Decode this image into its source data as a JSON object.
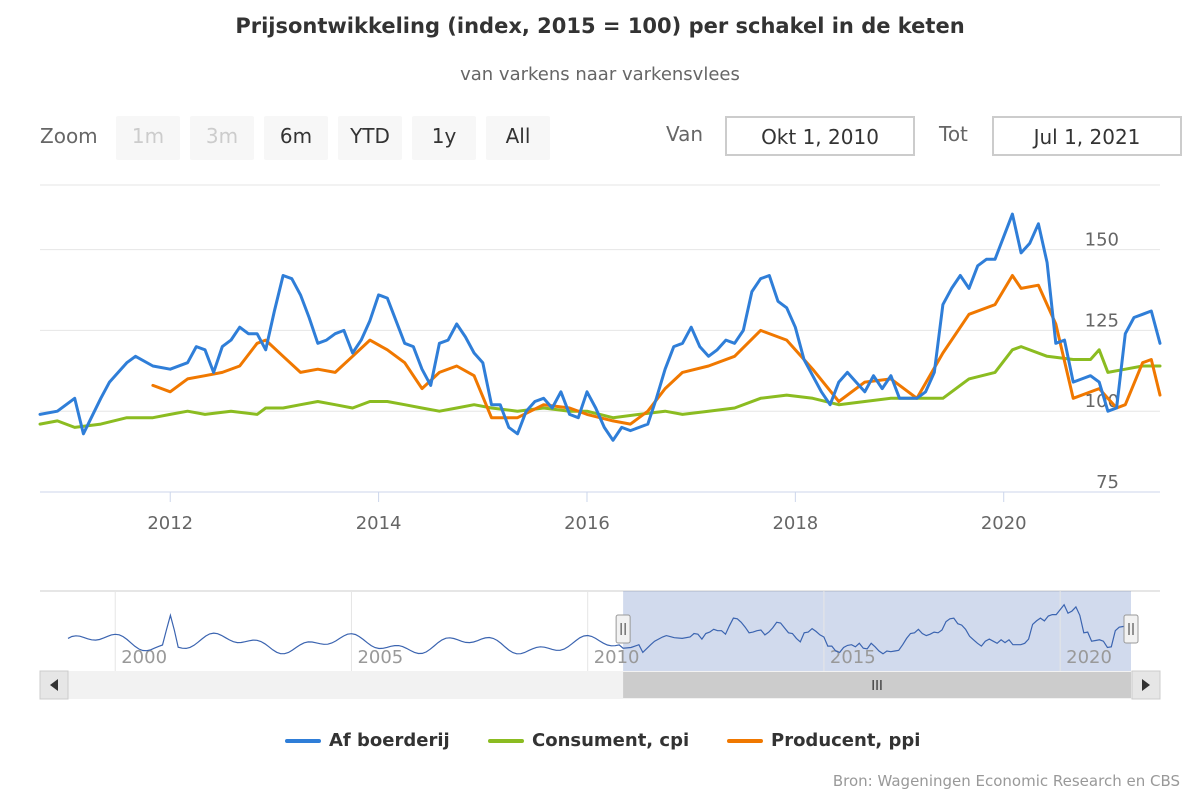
{
  "chart_data": {
    "type": "line",
    "title": "Prijsontwikkeling (index, 2015 = 100) per schakel in de keten",
    "subtitle": "van varkens naar varkensvlees",
    "x_range": [
      "2010-10",
      "2021-07"
    ],
    "ylim": [
      75,
      170
    ],
    "y_ticks": [
      "75",
      "100",
      "125",
      "150"
    ],
    "x_ticks": [
      "2012",
      "2014",
      "2016",
      "2018",
      "2020"
    ],
    "grid": true,
    "legend_position": "bottom",
    "colors": {
      "af_boerderij": "#2f7ed8",
      "consument": "#8bbc21",
      "producent": "#f07800"
    },
    "series": [
      {
        "name": "Af boerderij",
        "color": "#2f7ed8",
        "points": [
          [
            "2010-10",
            99
          ],
          [
            "2010-12",
            100
          ],
          [
            "2011-02",
            104
          ],
          [
            "2011-03",
            93
          ],
          [
            "2011-05",
            104
          ],
          [
            "2011-06",
            109
          ],
          [
            "2011-08",
            115
          ],
          [
            "2011-09",
            117
          ],
          [
            "2011-11",
            114
          ],
          [
            "2012-01",
            113
          ],
          [
            "2012-03",
            115
          ],
          [
            "2012-04",
            120
          ],
          [
            "2012-05",
            119
          ],
          [
            "2012-06",
            112
          ],
          [
            "2012-07",
            120
          ],
          [
            "2012-08",
            122
          ],
          [
            "2012-09",
            126
          ],
          [
            "2012-10",
            124
          ],
          [
            "2012-11",
            124
          ],
          [
            "2012-12",
            119
          ],
          [
            "2013-01",
            131
          ],
          [
            "2013-02",
            142
          ],
          [
            "2013-03",
            141
          ],
          [
            "2013-04",
            136
          ],
          [
            "2013-05",
            129
          ],
          [
            "2013-06",
            121
          ],
          [
            "2013-07",
            122
          ],
          [
            "2013-08",
            124
          ],
          [
            "2013-09",
            125
          ],
          [
            "2013-10",
            118
          ],
          [
            "2013-11",
            122
          ],
          [
            "2013-12",
            128
          ],
          [
            "2014-01",
            136
          ],
          [
            "2014-02",
            135
          ],
          [
            "2014-03",
            128
          ],
          [
            "2014-04",
            121
          ],
          [
            "2014-05",
            120
          ],
          [
            "2014-06",
            113
          ],
          [
            "2014-07",
            108
          ],
          [
            "2014-08",
            121
          ],
          [
            "2014-09",
            122
          ],
          [
            "2014-10",
            127
          ],
          [
            "2014-11",
            123
          ],
          [
            "2014-12",
            118
          ],
          [
            "2015-01",
            115
          ],
          [
            "2015-02",
            102
          ],
          [
            "2015-03",
            102
          ],
          [
            "2015-04",
            95
          ],
          [
            "2015-05",
            93
          ],
          [
            "2015-06",
            100
          ],
          [
            "2015-07",
            103
          ],
          [
            "2015-08",
            104
          ],
          [
            "2015-09",
            101
          ],
          [
            "2015-10",
            106
          ],
          [
            "2015-11",
            99
          ],
          [
            "2015-12",
            98
          ],
          [
            "2016-01",
            106
          ],
          [
            "2016-02",
            101
          ],
          [
            "2016-03",
            95
          ],
          [
            "2016-04",
            91
          ],
          [
            "2016-05",
            95
          ],
          [
            "2016-06",
            94
          ],
          [
            "2016-07",
            95
          ],
          [
            "2016-08",
            96
          ],
          [
            "2016-09",
            104
          ],
          [
            "2016-10",
            113
          ],
          [
            "2016-11",
            120
          ],
          [
            "2016-12",
            121
          ],
          [
            "2017-01",
            126
          ],
          [
            "2017-02",
            120
          ],
          [
            "2017-03",
            117
          ],
          [
            "2017-04",
            119
          ],
          [
            "2017-05",
            122
          ],
          [
            "2017-06",
            121
          ],
          [
            "2017-07",
            125
          ],
          [
            "2017-08",
            137
          ],
          [
            "2017-09",
            141
          ],
          [
            "2017-10",
            142
          ],
          [
            "2017-11",
            134
          ],
          [
            "2017-12",
            132
          ],
          [
            "2018-01",
            126
          ],
          [
            "2018-02",
            116
          ],
          [
            "2018-03",
            111
          ],
          [
            "2018-04",
            106
          ],
          [
            "2018-05",
            102
          ],
          [
            "2018-06",
            109
          ],
          [
            "2018-07",
            112
          ],
          [
            "2018-08",
            109
          ],
          [
            "2018-09",
            106
          ],
          [
            "2018-10",
            111
          ],
          [
            "2018-11",
            107
          ],
          [
            "2018-12",
            111
          ],
          [
            "2019-01",
            104
          ],
          [
            "2019-02",
            104
          ],
          [
            "2019-03",
            104
          ],
          [
            "2019-04",
            106
          ],
          [
            "2019-05",
            112
          ],
          [
            "2019-06",
            133
          ],
          [
            "2019-07",
            138
          ],
          [
            "2019-08",
            142
          ],
          [
            "2019-09",
            138
          ],
          [
            "2019-10",
            145
          ],
          [
            "2019-11",
            147
          ],
          [
            "2019-12",
            147
          ],
          [
            "2020-01",
            154
          ],
          [
            "2020-02",
            161
          ],
          [
            "2020-03",
            149
          ],
          [
            "2020-04",
            152
          ],
          [
            "2020-05",
            158
          ],
          [
            "2020-06",
            146
          ],
          [
            "2020-07",
            121
          ],
          [
            "2020-08",
            122
          ],
          [
            "2020-09",
            109
          ],
          [
            "2020-10",
            110
          ],
          [
            "2020-11",
            111
          ],
          [
            "2020-12",
            109
          ],
          [
            "2021-01",
            100
          ],
          [
            "2021-02",
            101
          ],
          [
            "2021-03",
            124
          ],
          [
            "2021-04",
            129
          ],
          [
            "2021-05",
            130
          ],
          [
            "2021-06",
            131
          ],
          [
            "2021-07",
            121
          ]
        ]
      },
      {
        "name": "Consument, cpi",
        "color": "#8bbc21",
        "points": [
          [
            "2010-10",
            96
          ],
          [
            "2010-12",
            97
          ],
          [
            "2011-02",
            95
          ],
          [
            "2011-05",
            96
          ],
          [
            "2011-08",
            98
          ],
          [
            "2011-11",
            98
          ],
          [
            "2012-01",
            99
          ],
          [
            "2012-03",
            100
          ],
          [
            "2012-05",
            99
          ],
          [
            "2012-08",
            100
          ],
          [
            "2012-11",
            99
          ],
          [
            "2012-12",
            101
          ],
          [
            "2013-02",
            101
          ],
          [
            "2013-04",
            102
          ],
          [
            "2013-06",
            103
          ],
          [
            "2013-08",
            102
          ],
          [
            "2013-10",
            101
          ],
          [
            "2013-12",
            103
          ],
          [
            "2014-02",
            103
          ],
          [
            "2014-04",
            102
          ],
          [
            "2014-06",
            101
          ],
          [
            "2014-08",
            100
          ],
          [
            "2014-10",
            101
          ],
          [
            "2014-12",
            102
          ],
          [
            "2015-02",
            101
          ],
          [
            "2015-05",
            100
          ],
          [
            "2015-08",
            101
          ],
          [
            "2015-11",
            100
          ],
          [
            "2016-01",
            100
          ],
          [
            "2016-04",
            98
          ],
          [
            "2016-07",
            99
          ],
          [
            "2016-10",
            100
          ],
          [
            "2016-12",
            99
          ],
          [
            "2017-03",
            100
          ],
          [
            "2017-06",
            101
          ],
          [
            "2017-09",
            104
          ],
          [
            "2017-12",
            105
          ],
          [
            "2018-03",
            104
          ],
          [
            "2018-06",
            102
          ],
          [
            "2018-09",
            103
          ],
          [
            "2018-12",
            104
          ],
          [
            "2019-03",
            104
          ],
          [
            "2019-06",
            104
          ],
          [
            "2019-09",
            110
          ],
          [
            "2019-12",
            112
          ],
          [
            "2020-02",
            119
          ],
          [
            "2020-03",
            120
          ],
          [
            "2020-06",
            117
          ],
          [
            "2020-09",
            116
          ],
          [
            "2020-11",
            116
          ],
          [
            "2020-12",
            119
          ],
          [
            "2021-01",
            112
          ],
          [
            "2021-03",
            113
          ],
          [
            "2021-05",
            114
          ],
          [
            "2021-07",
            114
          ]
        ]
      },
      {
        "name": "Producent, ppi",
        "color": "#f07800",
        "points": [
          [
            "2011-11",
            108
          ],
          [
            "2012-01",
            106
          ],
          [
            "2012-03",
            110
          ],
          [
            "2012-05",
            111
          ],
          [
            "2012-07",
            112
          ],
          [
            "2012-09",
            114
          ],
          [
            "2012-11",
            121
          ],
          [
            "2012-12",
            122
          ],
          [
            "2013-02",
            117
          ],
          [
            "2013-04",
            112
          ],
          [
            "2013-06",
            113
          ],
          [
            "2013-08",
            112
          ],
          [
            "2013-10",
            117
          ],
          [
            "2013-12",
            122
          ],
          [
            "2014-02",
            119
          ],
          [
            "2014-04",
            115
          ],
          [
            "2014-06",
            107
          ],
          [
            "2014-08",
            112
          ],
          [
            "2014-10",
            114
          ],
          [
            "2014-12",
            111
          ],
          [
            "2015-02",
            98
          ],
          [
            "2015-05",
            98
          ],
          [
            "2015-08",
            102
          ],
          [
            "2015-11",
            101
          ],
          [
            "2016-01",
            99
          ],
          [
            "2016-04",
            97
          ],
          [
            "2016-06",
            96
          ],
          [
            "2016-08",
            100
          ],
          [
            "2016-10",
            107
          ],
          [
            "2016-12",
            112
          ],
          [
            "2017-03",
            114
          ],
          [
            "2017-06",
            117
          ],
          [
            "2017-09",
            125
          ],
          [
            "2017-12",
            122
          ],
          [
            "2018-03",
            113
          ],
          [
            "2018-06",
            103
          ],
          [
            "2018-09",
            109
          ],
          [
            "2018-12",
            110
          ],
          [
            "2019-03",
            104
          ],
          [
            "2019-06",
            118
          ],
          [
            "2019-09",
            130
          ],
          [
            "2019-12",
            133
          ],
          [
            "2020-02",
            142
          ],
          [
            "2020-03",
            138
          ],
          [
            "2020-05",
            139
          ],
          [
            "2020-07",
            127
          ],
          [
            "2020-09",
            104
          ],
          [
            "2020-12",
            107
          ],
          [
            "2021-02",
            101
          ],
          [
            "2021-03",
            102
          ],
          [
            "2021-05",
            115
          ],
          [
            "2021-06",
            116
          ],
          [
            "2021-07",
            105
          ]
        ]
      }
    ]
  },
  "toolbar": {
    "zoom_label": "Zoom",
    "zoom_buttons": [
      "1m",
      "3m",
      "6m",
      "YTD",
      "1y",
      "All"
    ],
    "from_label": "Van",
    "from_value": "Okt 1, 2010",
    "to_label": "Tot",
    "to_value": "Jul 1, 2021"
  },
  "navigator": {
    "x_ticks": [
      "2000",
      "2005",
      "2010",
      "2015",
      "2020"
    ],
    "scrollbar_grip": "III",
    "selected_range": [
      "2010-10",
      "2021-07"
    ],
    "full_range": [
      "1999-01",
      "2021-07"
    ]
  },
  "legend": [
    "Af boerderij",
    "Consument, cpi",
    "Producent, ppi"
  ],
  "credits": "Bron: Wageningen Economic Research en CBS"
}
